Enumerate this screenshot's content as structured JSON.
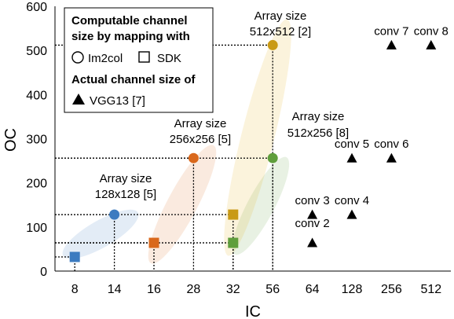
{
  "chart_data": {
    "type": "scatter",
    "xlabel": "IC",
    "ylabel": "OC",
    "x_categories": [
      "8",
      "14",
      "16",
      "28",
      "32",
      "56",
      "64",
      "128",
      "256",
      "512"
    ],
    "yticks": [
      "0",
      "100",
      "200",
      "300",
      "400",
      "500",
      "600"
    ],
    "ylim": [
      0,
      600
    ],
    "grid": false,
    "legend_position": "top-left",
    "legend": {
      "header1": "Computable channel",
      "header2": "size by mapping with",
      "im2col_label": "Im2col",
      "sdk_label": "SDK",
      "actual_header": "Actual channel size of",
      "vgg_label": "VGG13 [7]"
    },
    "colors": {
      "blue": "#3c7bc0",
      "orange": "#d9681c",
      "green": "#5f9e3c",
      "gold": "#c99a16",
      "black": "#000000"
    },
    "series": [
      {
        "name": "Im2col",
        "marker": "circle",
        "points": [
          {
            "x": "14",
            "y": 128,
            "color": "blue"
          },
          {
            "x": "28",
            "y": 256,
            "color": "orange"
          },
          {
            "x": "56",
            "y": 256,
            "color": "green"
          },
          {
            "x": "56",
            "y": 512,
            "color": "gold"
          }
        ]
      },
      {
        "name": "SDK",
        "marker": "square",
        "points": [
          {
            "x": "8",
            "y": 32,
            "color": "blue"
          },
          {
            "x": "16",
            "y": 64,
            "color": "orange"
          },
          {
            "x": "32",
            "y": 64,
            "color": "green"
          },
          {
            "x": "32",
            "y": 128,
            "color": "gold"
          }
        ]
      },
      {
        "name": "VGG13 [7]",
        "marker": "triangle",
        "points": [
          {
            "x": "64",
            "y": 64,
            "label": "conv 2",
            "color": "black"
          },
          {
            "x": "64",
            "y": 128,
            "label": "conv 3",
            "color": "black"
          },
          {
            "x": "128",
            "y": 128,
            "label": "conv 4",
            "color": "black"
          },
          {
            "x": "128",
            "y": 256,
            "label": "conv 5",
            "color": "black"
          },
          {
            "x": "256",
            "y": 256,
            "label": "conv 6",
            "color": "black"
          },
          {
            "x": "256",
            "y": 512,
            "label": "conv 7",
            "color": "black"
          },
          {
            "x": "512",
            "y": 512,
            "label": "conv 8",
            "color": "black"
          }
        ]
      }
    ],
    "annotations": [
      {
        "id": "a128",
        "line1": "Array size",
        "line2": "128x128 [5]"
      },
      {
        "id": "a256",
        "line1": "Array size",
        "line2": "256x256 [5]"
      },
      {
        "id": "a512x256",
        "line1": "Array size",
        "line2": "512x256 [8]"
      },
      {
        "id": "a512",
        "line1": "Array size",
        "line2": "512x512 [2]"
      }
    ]
  }
}
